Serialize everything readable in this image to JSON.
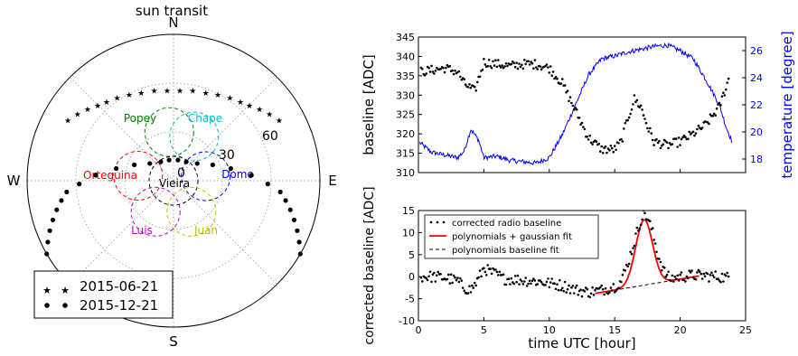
{
  "chart_data": [
    {
      "type": "polar",
      "title": "sun transit",
      "directions": {
        "n": "N",
        "e": "E",
        "s": "S",
        "w": "W"
      },
      "radial_labels": [
        "0",
        "30",
        "60"
      ],
      "stations": [
        {
          "name": "Popey",
          "color": "#008000",
          "az": 355,
          "r": 30
        },
        {
          "name": "Chape",
          "color": "#00bfbf",
          "az": 25,
          "r": 30
        },
        {
          "name": "Orteguina",
          "color": "#ff0000",
          "az": 278,
          "r": 22
        },
        {
          "name": "Domo",
          "color": "#0000ff",
          "az": 82,
          "r": 20
        },
        {
          "name": "Vieira",
          "color": "#000000",
          "az": 0,
          "r": 0
        },
        {
          "name": "Luis",
          "color": "#bf00bf",
          "az": 210,
          "r": 22
        },
        {
          "name": "Juan",
          "color": "#bfbf00",
          "az": 150,
          "r": 22
        }
      ],
      "series": [
        {
          "name": "2015-06-21",
          "marker": "star",
          "points": [
            [
              -60,
              75
            ],
            [
              -55,
              72
            ],
            [
              -50,
              69
            ],
            [
              -45,
              66
            ],
            [
              -40,
              64
            ],
            [
              -34,
              62
            ],
            [
              -27,
              60
            ],
            [
              -20,
              58
            ],
            [
              -12,
              57
            ],
            [
              -4,
              56
            ],
            [
              4,
              56
            ],
            [
              12,
              57
            ],
            [
              20,
              58
            ],
            [
              27,
              60
            ],
            [
              34,
              62
            ],
            [
              40,
              64
            ],
            [
              45,
              66
            ],
            [
              50,
              69
            ],
            [
              55,
              72
            ],
            [
              60,
              75
            ]
          ]
        },
        {
          "name": "2015-12-21",
          "marker": "dot",
          "points": [
            [
              -120,
              90
            ],
            [
              -116,
              86
            ],
            [
              -112,
              82
            ],
            [
              -108,
              78
            ],
            [
              -104,
              74
            ],
            [
              -100,
              70
            ],
            [
              -96,
              66
            ],
            [
              -92,
              58
            ],
            [
              -86,
              48
            ],
            [
              -78,
              36
            ],
            [
              -68,
              26
            ],
            [
              -54,
              18
            ],
            [
              -34,
              14
            ],
            [
              -12,
              13
            ],
            [
              12,
              13
            ],
            [
              34,
              14
            ],
            [
              54,
              18
            ],
            [
              68,
              26
            ],
            [
              78,
              36
            ],
            [
              86,
              48
            ],
            [
              92,
              58
            ],
            [
              96,
              66
            ],
            [
              100,
              70
            ],
            [
              104,
              74
            ],
            [
              108,
              78
            ],
            [
              112,
              82
            ],
            [
              116,
              86
            ],
            [
              120,
              90
            ]
          ]
        }
      ],
      "legend": [
        "2015-06-21",
        "2015-12-21"
      ],
      "legend_position": "lower-left"
    },
    {
      "type": "line",
      "ylabel": "baseline [ADC]",
      "ylabel_right": "temperature [degree]",
      "xlim": [
        0,
        25
      ],
      "ylim": [
        310,
        345
      ],
      "y_ticks": [
        310,
        315,
        320,
        325,
        330,
        335,
        340,
        345
      ],
      "ylim_right": [
        17,
        27
      ],
      "y_ticks_right": [
        18,
        20,
        22,
        24,
        26
      ],
      "series_color_left": "#000000",
      "series_color_right": "#0000ff",
      "baseline_knots": [
        [
          0.2,
          336
        ],
        [
          2,
          337
        ],
        [
          3,
          336
        ],
        [
          3.5,
          333
        ],
        [
          4.3,
          331
        ],
        [
          5,
          338.5
        ],
        [
          6,
          338
        ],
        [
          7,
          337.5
        ],
        [
          8,
          338
        ],
        [
          9,
          338
        ],
        [
          10,
          337
        ],
        [
          11,
          333
        ],
        [
          12,
          326
        ],
        [
          13,
          319
        ],
        [
          14,
          316
        ],
        [
          15,
          316
        ],
        [
          15.5,
          318
        ],
        [
          16,
          324
        ],
        [
          16.5,
          329
        ],
        [
          17,
          327
        ],
        [
          17.5,
          322
        ],
        [
          18,
          318
        ],
        [
          19,
          317
        ],
        [
          20,
          318
        ],
        [
          21,
          320
        ],
        [
          22,
          322.5
        ],
        [
          23,
          327
        ],
        [
          23.7,
          334
        ]
      ],
      "temperature_knots": [
        [
          0.1,
          19.2
        ],
        [
          1,
          18.5
        ],
        [
          2,
          18.3
        ],
        [
          3,
          18.1
        ],
        [
          3.5,
          18.6
        ],
        [
          4,
          20.2
        ],
        [
          4.6,
          19.4
        ],
        [
          5,
          18.1
        ],
        [
          6,
          18.2
        ],
        [
          7,
          17.9
        ],
        [
          8,
          17.8
        ],
        [
          9,
          17.7
        ],
        [
          10,
          18.1
        ],
        [
          11,
          19.8
        ],
        [
          12,
          22
        ],
        [
          13,
          24.2
        ],
        [
          14,
          25.4
        ],
        [
          15,
          25.6
        ],
        [
          16,
          25.9
        ],
        [
          17,
          26.1
        ],
        [
          18,
          26.3
        ],
        [
          19,
          26.4
        ],
        [
          20,
          26
        ],
        [
          21,
          25.4
        ],
        [
          22,
          23.8
        ],
        [
          23,
          22
        ],
        [
          23.5,
          20.4
        ],
        [
          24,
          19.2
        ]
      ]
    },
    {
      "type": "line",
      "xlabel": "time UTC [hour]",
      "ylabel": "corrected baseline [ADC]",
      "xlim": [
        0,
        25
      ],
      "x_ticks": [
        0,
        5,
        10,
        15,
        20,
        25
      ],
      "ylim": [
        -10,
        15
      ],
      "y_ticks": [
        -10,
        -5,
        0,
        5,
        10,
        15
      ],
      "legend": [
        "corrected radio baseline",
        "polynomials + gaussian fit",
        "polynomials baseline fit"
      ],
      "legend_position": "top-left",
      "gaussian_fit": {
        "x_range": [
          13.5,
          21.5
        ],
        "amplitude": 14.8,
        "center": 17.25,
        "sigma": 0.65
      },
      "baseline_fit": {
        "x_range": [
          13.5,
          21.5
        ],
        "y_range": [
          -3.8,
          0.2
        ]
      },
      "corrected_knots": [
        [
          0.2,
          0
        ],
        [
          1,
          0
        ],
        [
          2,
          -0.2
        ],
        [
          3,
          -1
        ],
        [
          3.5,
          -2.5
        ],
        [
          4,
          -3
        ],
        [
          4.5,
          -1
        ],
        [
          5,
          2
        ],
        [
          5.5,
          1
        ],
        [
          6,
          0.5
        ],
        [
          6.5,
          -0.5
        ],
        [
          7,
          -0.5
        ],
        [
          8,
          -0.8
        ],
        [
          9,
          -1
        ],
        [
          10,
          -1.5
        ],
        [
          11,
          -2
        ],
        [
          12,
          -3
        ],
        [
          13,
          -3.5
        ],
        [
          14,
          -3
        ],
        [
          15,
          -2.2
        ],
        [
          15.5,
          -1
        ],
        [
          16,
          3
        ],
        [
          16.5,
          8
        ],
        [
          17,
          13
        ],
        [
          17.3,
          14.5
        ],
        [
          17.8,
          11
        ],
        [
          18.3,
          5
        ],
        [
          18.8,
          1
        ],
        [
          19.2,
          -0.5
        ],
        [
          20,
          0
        ],
        [
          21,
          0.3
        ],
        [
          22,
          0.2
        ],
        [
          23,
          0
        ],
        [
          23.8,
          -0.3
        ]
      ]
    }
  ]
}
